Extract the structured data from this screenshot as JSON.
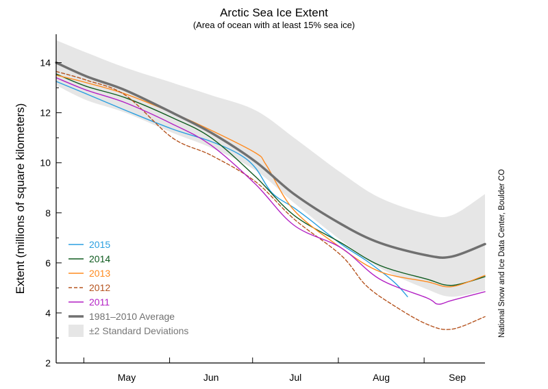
{
  "chart_data": {
    "type": "line",
    "title": "Arctic Sea Ice Extent",
    "subtitle": "(Area of ocean with at least 15% sea ice)",
    "xlabel": "",
    "ylabel": "Extent (millions of square kilometers)",
    "credit": "National Snow and Ice Data Center, Boulder CO",
    "ylim": [
      2,
      15
    ],
    "yticks": [
      2,
      4,
      6,
      8,
      10,
      12,
      14
    ],
    "xlim": [
      "Apr 20",
      "Sep 22"
    ],
    "xmonths": [
      {
        "label": "May",
        "days": 31
      },
      {
        "label": "Jun",
        "days": 30
      },
      {
        "label": "Jul",
        "days": 31
      },
      {
        "label": "Aug",
        "days": 31
      },
      {
        "label": "Sep",
        "days": 30
      }
    ],
    "band": {
      "name": "±2 Standard Deviations",
      "color": "#e6e6e6",
      "dates": [
        "Apr 20",
        "May 1",
        "May 15",
        "Jun 1",
        "Jun 15",
        "Jul 1",
        "Jul 15",
        "Aug 1",
        "Aug 15",
        "Sep 1",
        "Sep 10",
        "Sep 22"
      ],
      "upper": [
        14.9,
        14.4,
        13.8,
        13.2,
        12.7,
        12.1,
        11.0,
        9.6,
        8.6,
        7.95,
        7.9,
        8.75
      ],
      "lower": [
        13.1,
        12.5,
        12.0,
        11.2,
        10.6,
        9.7,
        8.4,
        6.9,
        5.8,
        4.95,
        4.65,
        4.9
      ]
    },
    "series": [
      {
        "name": "2015",
        "color": "#2a9fe0",
        "dash": "",
        "dates": [
          "Apr 20",
          "May 1",
          "May 15",
          "Jun 1",
          "Jun 15",
          "Jun 25",
          "Jul 1",
          "Jul 7",
          "Jul 15",
          "Jul 21",
          "Aug 1",
          "Aug 10",
          "Aug 20",
          "Aug 25"
        ],
        "values": [
          13.25,
          12.75,
          12.1,
          11.35,
          10.85,
          10.35,
          9.8,
          8.8,
          8.2,
          7.7,
          6.75,
          6.1,
          5.25,
          4.65
        ]
      },
      {
        "name": "2014",
        "color": "#0e5a1e",
        "dash": "",
        "dates": [
          "Apr 20",
          "May 1",
          "May 15",
          "Jun 1",
          "Jun 15",
          "Jul 1",
          "Jul 15",
          "Aug 1",
          "Aug 15",
          "Sep 1",
          "Sep 10",
          "Sep 22"
        ],
        "values": [
          13.55,
          13.05,
          12.6,
          11.8,
          11.0,
          9.45,
          7.9,
          6.8,
          5.9,
          5.35,
          5.1,
          5.45
        ]
      },
      {
        "name": "2013",
        "color": "#ff8a1e",
        "dash": "",
        "dates": [
          "Apr 20",
          "May 1",
          "May 15",
          "Jun 1",
          "Jun 15",
          "Jul 1",
          "Jul 5",
          "Jul 15",
          "Aug 1",
          "Aug 15",
          "Sep 1",
          "Sep 10",
          "Sep 22"
        ],
        "values": [
          13.5,
          13.2,
          12.75,
          12.0,
          11.3,
          10.4,
          9.9,
          8.1,
          6.6,
          5.65,
          5.25,
          5.05,
          5.5
        ]
      },
      {
        "name": "2012",
        "color": "#b5531e",
        "dash": "5,3",
        "dates": [
          "Apr 20",
          "May 1",
          "May 15",
          "Jun 1",
          "Jun 15",
          "Jul 1",
          "Jul 15",
          "Aug 1",
          "Aug 10",
          "Aug 20",
          "Sep 1",
          "Sep 10",
          "Sep 22"
        ],
        "values": [
          13.65,
          13.3,
          12.7,
          11.0,
          10.3,
          9.25,
          7.75,
          6.3,
          5.1,
          4.3,
          3.55,
          3.35,
          3.85
        ]
      },
      {
        "name": "2011",
        "color": "#b21fc4",
        "dash": "",
        "dates": [
          "Apr 20",
          "May 1",
          "May 15",
          "Jun 1",
          "Jun 15",
          "Jul 1",
          "Jul 15",
          "Aug 1",
          "Aug 15",
          "Sep 1",
          "Sep 5",
          "Sep 10",
          "Sep 22"
        ],
        "values": [
          13.4,
          12.9,
          12.4,
          11.55,
          10.7,
          9.15,
          7.5,
          6.6,
          5.35,
          4.6,
          4.35,
          4.5,
          4.85
        ]
      },
      {
        "name": "1981–2010 Average",
        "color": "#707070",
        "dash": "",
        "width": 3.5,
        "dates": [
          "Apr 20",
          "May 1",
          "May 15",
          "Jun 1",
          "Jun 15",
          "Jul 1",
          "Jul 15",
          "Aug 1",
          "Aug 15",
          "Sep 1",
          "Sep 10",
          "Sep 22"
        ],
        "values": [
          14.0,
          13.45,
          12.9,
          12.0,
          11.2,
          10.05,
          8.75,
          7.55,
          6.8,
          6.3,
          6.25,
          6.75
        ]
      }
    ]
  }
}
